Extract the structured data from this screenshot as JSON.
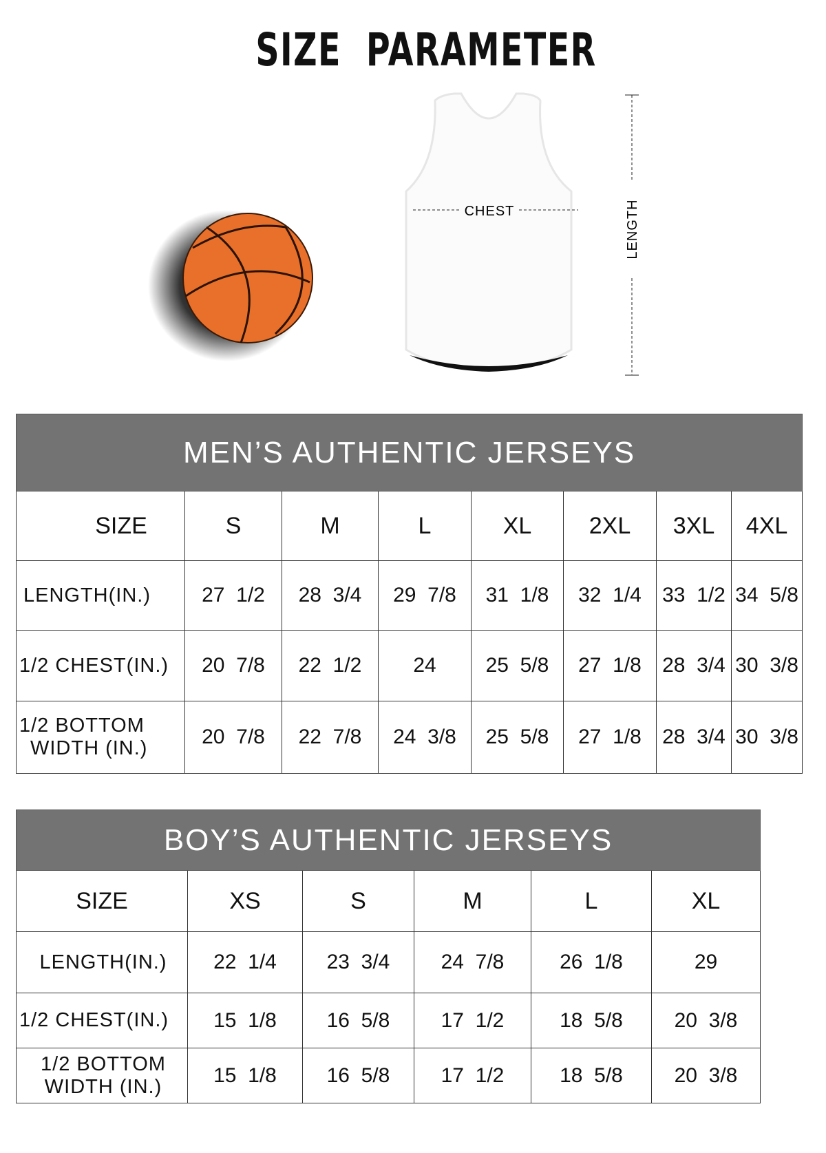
{
  "title": "SIZE  PARAMETER",
  "diagram": {
    "chest_label": "CHEST",
    "length_label": "LENGTH"
  },
  "colors": {
    "header_bg": "#737373",
    "ball": "#e8702a"
  },
  "men": {
    "heading": "MEN’S AUTHENTIC JERSEYS",
    "size_label": "SIZE",
    "sizes": [
      "S",
      "M",
      "L",
      "XL",
      "2XL",
      "3XL",
      "4XL"
    ],
    "rows": [
      {
        "label": "LENGTH(IN.)",
        "values": [
          "27  1/2",
          "28  3/4",
          "29  7/8",
          "31  1/8",
          "32  1/4",
          "33  1/2",
          "34  5/8"
        ]
      },
      {
        "label": "1/2 CHEST(IN.)",
        "values": [
          "20  7/8",
          "22  1/2",
          "24",
          "25  5/8",
          "27  1/8",
          "28  3/4",
          "30  3/8"
        ]
      },
      {
        "label": "1/2 BOTTOM WIDTH  (IN.)",
        "label1": "1/2 BOTTOM",
        "label2": "WIDTH  (IN.)",
        "values": [
          "20  7/8",
          "22  7/8",
          "24  3/8",
          "25  5/8",
          "27  1/8",
          "28  3/4",
          "30  3/8"
        ]
      }
    ]
  },
  "boys": {
    "heading": "BOY’S AUTHENTIC JERSEYS",
    "size_label": "SIZE",
    "sizes": [
      "XS",
      "S",
      "M",
      "L",
      "XL"
    ],
    "rows": [
      {
        "label": "LENGTH(IN.)",
        "values": [
          "22  1/4",
          "23  3/4",
          "24  7/8",
          "26  1/8",
          "29"
        ]
      },
      {
        "label": "1/2 CHEST(IN.)",
        "values": [
          "15  1/8",
          "16  5/8",
          "17  1/2",
          "18  5/8",
          "20  3/8"
        ]
      },
      {
        "label": "1/2 BOTTOM WIDTH  (IN.)",
        "label1": "1/2 BOTTOM",
        "label2": "WIDTH  (IN.)",
        "values": [
          "15  1/8",
          "16  5/8",
          "17  1/2",
          "18  5/8",
          "20  3/8"
        ]
      }
    ]
  }
}
